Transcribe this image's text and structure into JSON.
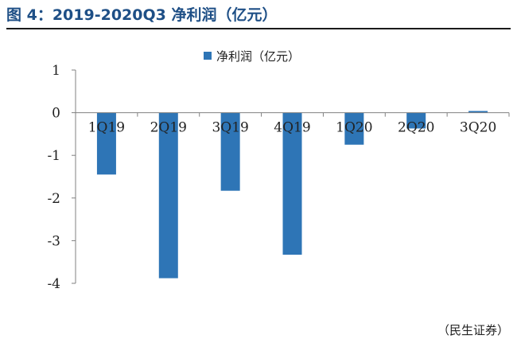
{
  "title": "图 4：2019-2020Q3 净利润（亿元）",
  "source": "（民生证券）",
  "colors": {
    "bar": "#2e75b6",
    "title": "#1e4f86",
    "axis": "#808080"
  },
  "chart_data": {
    "type": "bar",
    "title": "图 4：2019-2020Q3 净利润（亿元）",
    "xlabel": "",
    "ylabel": "",
    "categories": [
      "1Q19",
      "2Q19",
      "3Q19",
      "4Q19",
      "1Q20",
      "2Q20",
      "3Q20"
    ],
    "series": [
      {
        "name": "净利润（亿元）",
        "values": [
          -1.45,
          -3.88,
          -1.83,
          -3.33,
          -0.75,
          -0.37,
          0.04
        ]
      }
    ],
    "yticks": [
      1,
      0,
      -1,
      -2,
      -3,
      -4
    ],
    "ylim": [
      -4,
      1
    ],
    "grid": false,
    "legend": "top-center"
  }
}
